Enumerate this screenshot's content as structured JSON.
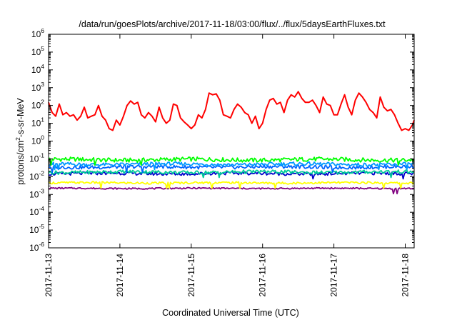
{
  "chart_data": {
    "type": "line",
    "title": "/data/run/goesPlots/archive/2017-11-18/03:00/flux/../flux/5daysEarthFluxes.txt",
    "xlabel": "Coordinated Universal Time (UTC)",
    "ylabel": {
      "base": "protons/cm",
      "sup": "2",
      "rest": "-s-sr-MeV"
    },
    "yscale": "log",
    "ylim": [
      1e-06,
      1000000.0
    ],
    "xlim": [
      "2017-11-13T00:00",
      "2017-11-18T03:00"
    ],
    "y_ticks": [
      {
        "value": 1e-06,
        "base": "10",
        "exp": "-6"
      },
      {
        "value": 1e-05,
        "base": "10",
        "exp": "-5"
      },
      {
        "value": 0.0001,
        "base": "10",
        "exp": "-4"
      },
      {
        "value": 0.001,
        "base": "10",
        "exp": "-3"
      },
      {
        "value": 0.01,
        "base": "10",
        "exp": "-2"
      },
      {
        "value": 0.1,
        "base": "10",
        "exp": "-1"
      },
      {
        "value": 1,
        "base": "10",
        "exp": "0"
      },
      {
        "value": 10,
        "base": "10",
        "exp": "1"
      },
      {
        "value": 100,
        "base": "10",
        "exp": "2"
      },
      {
        "value": 1000,
        "base": "10",
        "exp": "3"
      },
      {
        "value": 10000,
        "base": "10",
        "exp": "4"
      },
      {
        "value": 100000,
        "base": "10",
        "exp": "5"
      },
      {
        "value": 1000000,
        "base": "10",
        "exp": "6"
      }
    ],
    "x_ticks": [
      "2017-11-13",
      "2017-11-14",
      "2017-11-15",
      "2017-11-16",
      "2017-11-17",
      "2017-11-18"
    ],
    "grid": false,
    "legend": "none",
    "series": [
      {
        "color": "#ff0000",
        "points": [
          [
            "2017-11-13T00:00",
            150
          ],
          [
            "2017-11-13T01:12",
            40
          ],
          [
            "2017-11-13T02:24",
            25
          ],
          [
            "2017-11-13T03:36",
            120
          ],
          [
            "2017-11-13T04:48",
            30
          ],
          [
            "2017-11-13T06:00",
            40
          ],
          [
            "2017-11-13T07:12",
            25
          ],
          [
            "2017-11-13T08:24",
            30
          ],
          [
            "2017-11-13T09:36",
            15
          ],
          [
            "2017-11-13T10:48",
            25
          ],
          [
            "2017-11-13T12:00",
            80
          ],
          [
            "2017-11-13T13:12",
            20
          ],
          [
            "2017-11-13T14:24",
            25
          ],
          [
            "2017-11-13T15:36",
            30
          ],
          [
            "2017-11-13T16:48",
            100
          ],
          [
            "2017-11-13T18:00",
            25
          ],
          [
            "2017-11-13T19:12",
            15
          ],
          [
            "2017-11-13T20:24",
            5
          ],
          [
            "2017-11-13T21:36",
            4
          ],
          [
            "2017-11-13T22:48",
            15
          ],
          [
            "2017-11-14T00:00",
            8
          ],
          [
            "2017-11-14T01:12",
            25
          ],
          [
            "2017-11-14T02:24",
            100
          ],
          [
            "2017-11-14T03:36",
            180
          ],
          [
            "2017-11-14T04:48",
            120
          ],
          [
            "2017-11-14T06:00",
            150
          ],
          [
            "2017-11-14T07:12",
            30
          ],
          [
            "2017-11-14T08:24",
            20
          ],
          [
            "2017-11-14T09:36",
            40
          ],
          [
            "2017-11-14T10:48",
            25
          ],
          [
            "2017-11-14T12:00",
            12
          ],
          [
            "2017-11-14T13:12",
            80
          ],
          [
            "2017-11-14T14:24",
            20
          ],
          [
            "2017-11-14T15:36",
            10
          ],
          [
            "2017-11-14T16:48",
            15
          ],
          [
            "2017-11-14T18:00",
            120
          ],
          [
            "2017-11-14T19:12",
            100
          ],
          [
            "2017-11-14T20:24",
            20
          ],
          [
            "2017-11-14T21:36",
            12
          ],
          [
            "2017-11-14T22:48",
            8
          ],
          [
            "2017-11-15T00:00",
            5
          ],
          [
            "2017-11-15T01:12",
            8
          ],
          [
            "2017-11-15T02:24",
            30
          ],
          [
            "2017-11-15T03:36",
            20
          ],
          [
            "2017-11-15T04:48",
            60
          ],
          [
            "2017-11-15T06:00",
            500
          ],
          [
            "2017-11-15T07:12",
            400
          ],
          [
            "2017-11-15T08:24",
            450
          ],
          [
            "2017-11-15T09:36",
            200
          ],
          [
            "2017-11-15T10:48",
            30
          ],
          [
            "2017-11-15T12:00",
            25
          ],
          [
            "2017-11-15T13:12",
            20
          ],
          [
            "2017-11-15T14:24",
            60
          ],
          [
            "2017-11-15T15:36",
            120
          ],
          [
            "2017-11-15T16:48",
            80
          ],
          [
            "2017-11-15T18:00",
            40
          ],
          [
            "2017-11-15T19:12",
            30
          ],
          [
            "2017-11-15T20:24",
            10
          ],
          [
            "2017-11-15T21:36",
            25
          ],
          [
            "2017-11-15T22:48",
            5
          ],
          [
            "2017-11-16T00:00",
            10
          ],
          [
            "2017-11-16T01:12",
            60
          ],
          [
            "2017-11-16T02:24",
            200
          ],
          [
            "2017-11-16T03:36",
            250
          ],
          [
            "2017-11-16T04:48",
            120
          ],
          [
            "2017-11-16T06:00",
            150
          ],
          [
            "2017-11-16T07:12",
            40
          ],
          [
            "2017-11-16T08:24",
            200
          ],
          [
            "2017-11-16T09:36",
            400
          ],
          [
            "2017-11-16T10:48",
            300
          ],
          [
            "2017-11-16T12:00",
            600
          ],
          [
            "2017-11-16T13:12",
            250
          ],
          [
            "2017-11-16T14:24",
            150
          ],
          [
            "2017-11-16T15:36",
            150
          ],
          [
            "2017-11-16T16:48",
            200
          ],
          [
            "2017-11-16T18:00",
            100
          ],
          [
            "2017-11-16T19:12",
            40
          ],
          [
            "2017-11-16T20:24",
            300
          ],
          [
            "2017-11-16T21:36",
            120
          ],
          [
            "2017-11-16T22:48",
            100
          ],
          [
            "2017-11-17T00:00",
            30
          ],
          [
            "2017-11-17T01:12",
            30
          ],
          [
            "2017-11-17T02:24",
            120
          ],
          [
            "2017-11-17T03:36",
            400
          ],
          [
            "2017-11-17T04:48",
            80
          ],
          [
            "2017-11-17T06:00",
            30
          ],
          [
            "2017-11-17T07:12",
            200
          ],
          [
            "2017-11-17T08:24",
            500
          ],
          [
            "2017-11-17T09:36",
            300
          ],
          [
            "2017-11-17T10:48",
            150
          ],
          [
            "2017-11-17T12:00",
            60
          ],
          [
            "2017-11-17T13:12",
            40
          ],
          [
            "2017-11-17T14:24",
            20
          ],
          [
            "2017-11-17T15:36",
            300
          ],
          [
            "2017-11-17T16:48",
            80
          ],
          [
            "2017-11-17T18:00",
            50
          ],
          [
            "2017-11-17T19:12",
            60
          ],
          [
            "2017-11-17T20:24",
            30
          ],
          [
            "2017-11-17T21:36",
            10
          ],
          [
            "2017-11-17T22:48",
            4
          ],
          [
            "2017-11-18T00:00",
            5
          ],
          [
            "2017-11-18T01:12",
            4
          ],
          [
            "2017-11-18T02:24",
            8
          ],
          [
            "2017-11-18T03:00",
            15
          ]
        ]
      },
      {
        "color": "#00ff00",
        "base": 0.09,
        "amp": 0.12
      },
      {
        "color": "#0099ff",
        "base": 0.05,
        "amp": 0.1
      },
      {
        "color": "#0066ff",
        "base": 0.035,
        "amp": 0.1
      },
      {
        "color": "#00cc99",
        "base": 0.018,
        "amp": 0.1
      },
      {
        "color": "#0000cc",
        "base": 0.015,
        "amp": 0.09
      },
      {
        "color": "#ffff00",
        "base": 0.0045,
        "amp": 0.06
      },
      {
        "color": "#800080",
        "base": 0.0022,
        "amp": 0.04
      }
    ]
  }
}
